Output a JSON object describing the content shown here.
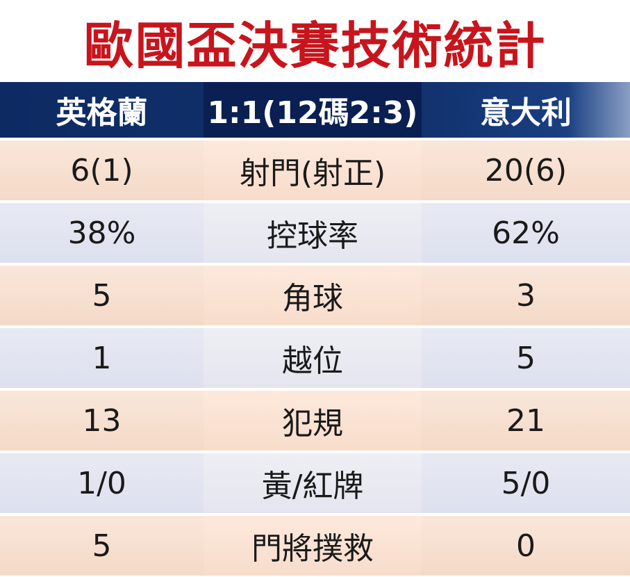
{
  "title": "歐國盃決賽技術統計",
  "header": {
    "team_left": "英格蘭",
    "score": "1:1(12碼2:3)",
    "team_right": "意大利"
  },
  "rows": [
    {
      "left": "6(1)",
      "label": "射門(射正)",
      "right": "20(6)"
    },
    {
      "left": "38%",
      "label": "控球率",
      "right": "62%"
    },
    {
      "left": "5",
      "label": "角球",
      "right": "3"
    },
    {
      "left": "1",
      "label": "越位",
      "right": "5"
    },
    {
      "left": "13",
      "label": "犯規",
      "right": "21"
    },
    {
      "left": "1/0",
      "label": "黃/紅牌",
      "right": "5/0"
    },
    {
      "left": "5",
      "label": "門將撲救",
      "right": "0"
    }
  ]
}
